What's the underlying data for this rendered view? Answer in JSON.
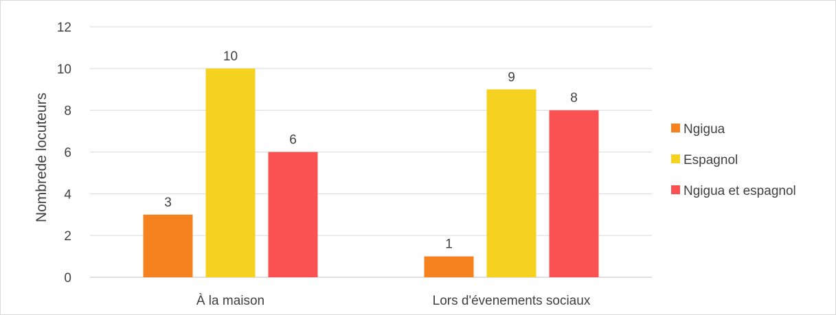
{
  "chart_data": {
    "type": "bar",
    "categories": [
      "À la maison",
      "Lors d'évenements sociaux"
    ],
    "series": [
      {
        "name": "Ngigua",
        "values": [
          3,
          1
        ],
        "color": "#F5821F"
      },
      {
        "name": "Espagnol",
        "values": [
          10,
          9
        ],
        "color": "#F5D21F"
      },
      {
        "name": "Ngigua et espagnol",
        "values": [
          6,
          8
        ],
        "color": "#FA5252"
      }
    ],
    "ylabel": "Nombrede locuteurs",
    "xlabel": "",
    "ylim": [
      0,
      12
    ],
    "yticks": [
      0,
      2,
      4,
      6,
      8,
      10,
      12
    ],
    "grid": true,
    "legend_position": "right",
    "data_labels": true
  }
}
